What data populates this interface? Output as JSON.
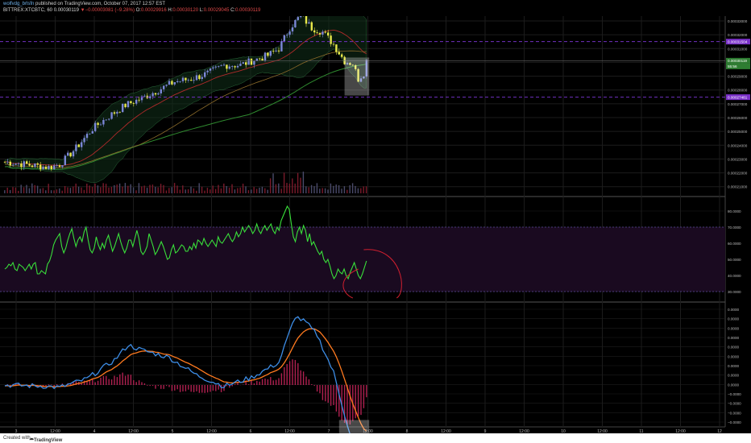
{
  "header": {
    "author": "wolfvdg_brlsfn",
    "published_text": "published on TradingView.com, October 07, 2017 12:57 EST",
    "symbol": "BITTREX:XTCBTC, 60",
    "last_price": "0.00030119",
    "change_text": "▼−0.00003081 (−9.28%)",
    "ohlc": {
      "O": "0.00029916",
      "H": "0.00030120",
      "L": "0.00029045",
      "C": "0.00030119"
    }
  },
  "footer": {
    "created_with": "Created with",
    "brand": "TradingView"
  },
  "colors": {
    "background": "#000000",
    "grid": "#1c1c1c",
    "price_up": "#7b86d6",
    "price_down": "#e8e84a",
    "rsi_line": "#39e03a",
    "rsi_band": "#1a0a20",
    "macd_line": "#3d8de6",
    "signal_line": "#ff7a1f",
    "histogram": "#b02050",
    "support_resistance": "#7030c0"
  },
  "chart_data": [
    {
      "type": "candlestick",
      "panel": "price",
      "x_tick_labels": [
        "3",
        "12:00",
        "4",
        "12:00",
        "5",
        "12:00",
        "6",
        "12:00",
        "7",
        "12:00",
        "8",
        "12:00",
        "9",
        "12:00",
        "10",
        "12:00",
        "11",
        "12:00",
        "12"
      ],
      "y_tick_labels": [
        "0.00033000",
        "0.00032000",
        "0.00031000",
        "0.00030000",
        "0.00029000",
        "0.00028000",
        "0.00027000",
        "0.00026000",
        "0.00025000",
        "0.00024000",
        "0.00023000",
        "0.00022000",
        "0.00021000"
      ],
      "ylim": [
        0.0002075,
        0.0003335
      ],
      "price_label": "0.00030119",
      "price_sublabel": "55:56",
      "resistance_label": "0.00031504",
      "support_label": "0.00027481",
      "ohlc_series": "dense candlestick series, 133 hourly bars drawn by script",
      "volume": "volume bars at bottom of price panel",
      "overlays": [
        "bollinger bands",
        "moving averages (red, green)",
        "grey highlight box on latest bars"
      ]
    },
    {
      "type": "line",
      "panel": "rsi",
      "y_tick_labels": [
        "80.0000",
        "70.0000",
        "60.0000",
        "50.0000",
        "40.0000",
        "30.0000"
      ],
      "ylim": [
        25,
        88
      ],
      "band": [
        30,
        70
      ],
      "values": [
        44,
        45,
        47,
        46,
        48,
        44,
        43,
        47,
        46,
        45,
        43,
        45,
        47,
        44,
        47,
        48,
        41,
        41,
        43,
        42,
        41,
        47,
        49,
        53,
        59,
        62,
        64,
        66,
        58,
        54,
        57,
        62,
        66,
        69,
        63,
        58,
        62,
        64,
        61,
        67,
        70,
        62,
        56,
        54,
        57,
        64,
        59,
        56,
        60,
        57,
        62,
        65,
        60,
        55,
        58,
        62,
        66,
        61,
        57,
        54,
        57,
        62,
        62,
        58,
        63,
        68,
        63,
        55,
        53,
        55,
        58,
        66,
        62,
        58,
        53,
        55,
        58,
        61,
        58,
        54,
        50,
        51,
        56,
        59,
        54,
        55,
        57,
        59,
        58,
        55,
        55,
        58,
        56,
        60,
        57,
        62,
        61,
        59,
        63,
        60,
        58,
        60,
        62,
        60,
        58,
        64,
        61,
        60,
        62,
        64,
        66,
        63,
        61,
        63,
        67,
        64,
        66,
        70,
        67,
        69,
        71,
        69,
        66,
        68,
        72,
        68,
        66,
        69,
        71,
        68,
        70,
        72,
        68,
        66,
        70,
        68,
        74,
        77,
        80,
        83,
        81,
        72,
        64,
        61,
        67,
        70,
        66,
        71,
        68,
        61,
        66,
        59,
        61,
        58,
        55,
        53,
        55,
        50,
        48,
        50,
        46,
        41,
        38,
        40,
        44,
        42,
        41,
        44,
        40,
        38,
        42,
        45,
        48,
        44,
        40,
        38,
        41,
        45,
        49
      ]
    },
    {
      "type": "line",
      "panel": "macd",
      "y_tick_labels": [
        "0.0000",
        "0.0000",
        "0.0000",
        "0.0000",
        "0.0000",
        "0.0000",
        "0.0000",
        "0.0000",
        "0.0000",
        "−0.0000",
        "−0.0000",
        "−0.0000",
        "−0.0000"
      ],
      "series": [
        {
          "name": "MACD"
        },
        {
          "name": "Signal"
        },
        {
          "name": "Histogram"
        }
      ],
      "annotation": "grey highlight box at latest bars"
    }
  ]
}
